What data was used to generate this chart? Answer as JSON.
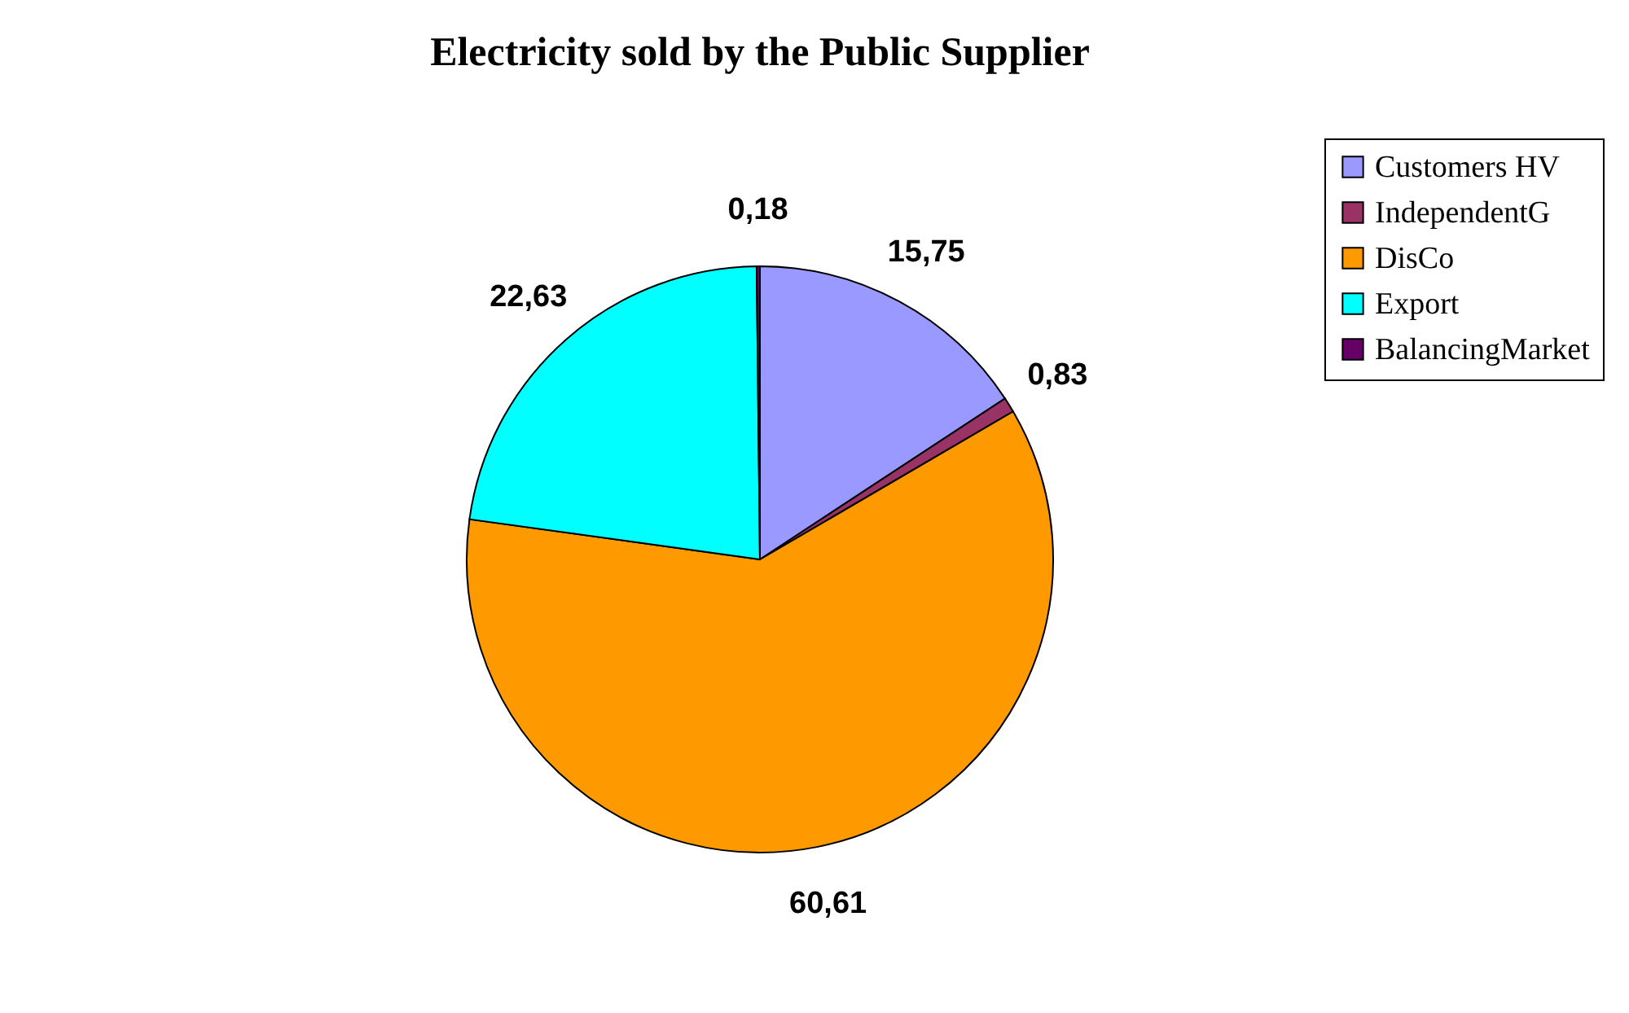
{
  "chart_data": {
    "type": "pie",
    "title": "Electricity sold by the Public Supplier",
    "categories": [
      "Customers HV",
      "IndependentG",
      "DisCo",
      "Export",
      "BalancingMarket"
    ],
    "values": [
      15.75,
      0.83,
      60.61,
      22.63,
      0.18
    ],
    "value_labels": [
      "15,75",
      "0,83",
      "60,61",
      "22,63",
      "0,18"
    ],
    "colors": [
      "#9999ff",
      "#993366",
      "#ff9900",
      "#00ffff",
      "#660066"
    ],
    "legend": "right"
  }
}
